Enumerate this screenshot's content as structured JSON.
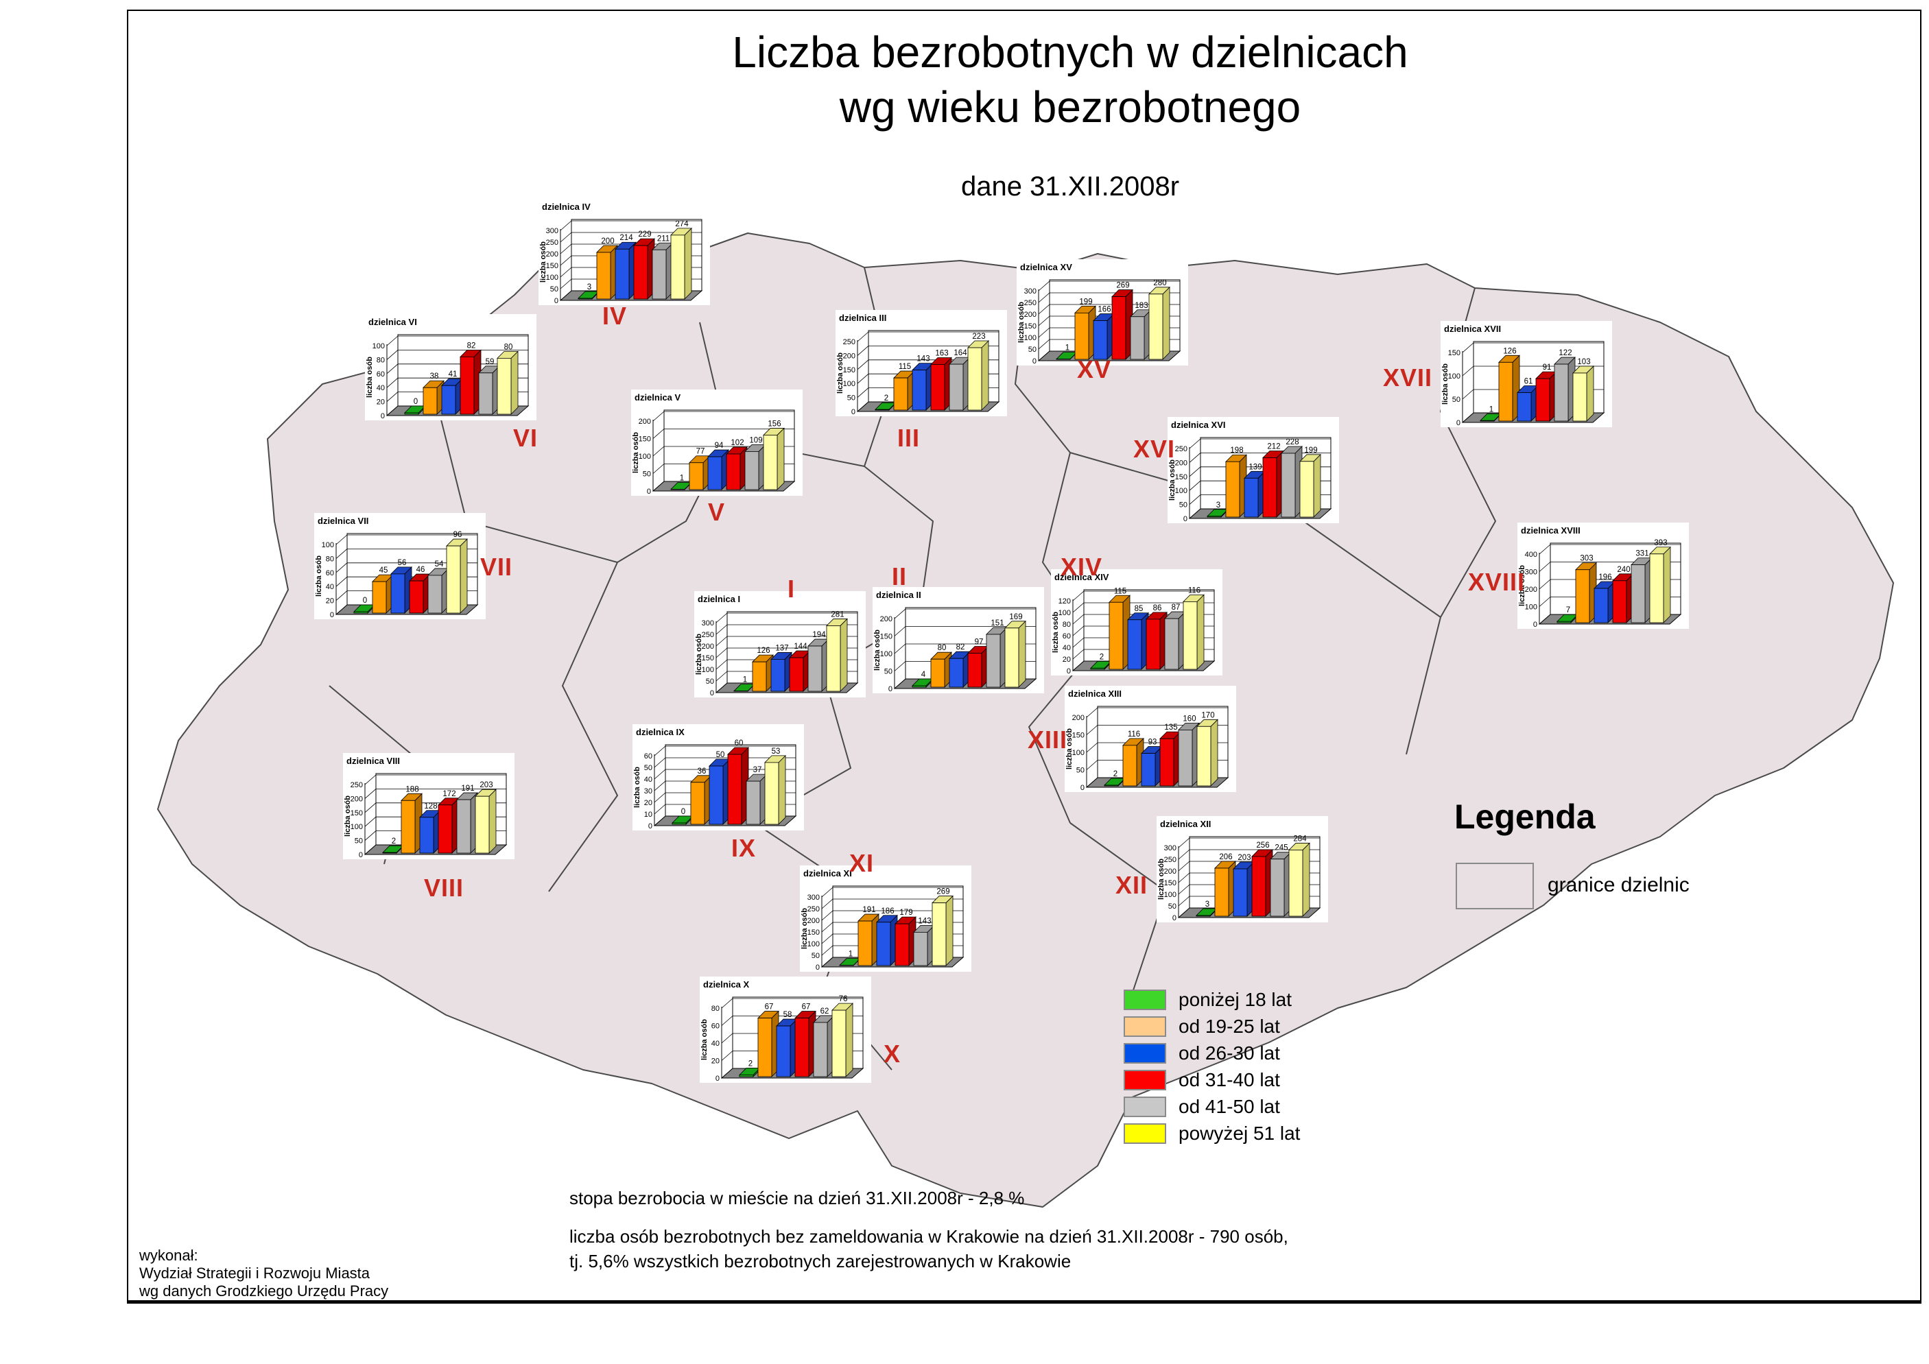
{
  "title_line1": "Liczba bezrobotnych w dzielnicach",
  "title_line2": "wg wieku bezrobotnego",
  "subtitle": "dane 31.XII.2008r",
  "legend": {
    "title": "Legenda",
    "boundary_label": "granice dzielnic",
    "boundary_fill": "#e9e0e3"
  },
  "age_groups": [
    {
      "label": "poniżej 18 lat",
      "swatch": "#3fd62a",
      "bar": "#1db91d",
      "bar_top": "#17a517",
      "bar_side": "#128812"
    },
    {
      "label": "od 19-25 lat",
      "swatch": "#ffcc8c",
      "bar": "#ff9c00",
      "bar_top": "#e08a00",
      "bar_side": "#b06c00"
    },
    {
      "label": "od 26-30 lat",
      "swatch": "#0051e8",
      "bar": "#2356e8",
      "bar_top": "#1c45c4",
      "bar_side": "#16359e"
    },
    {
      "label": "od 31-40 lat",
      "swatch": "#ff0000",
      "bar": "#f00000",
      "bar_top": "#c80000",
      "bar_side": "#a00000"
    },
    {
      "label": "od 41-50 lat",
      "swatch": "#c8c8c8",
      "bar": "#b5b5b5",
      "bar_top": "#9d9d9d",
      "bar_side": "#838383"
    },
    {
      "label": "powyżej 51 lat",
      "swatch": "#ffff00",
      "bar": "#ffffa8",
      "bar_top": "#e8e88a",
      "bar_side": "#c9c96a"
    }
  ],
  "chart_data": [
    {
      "type": "bar",
      "district": "I",
      "title": "dzielnica I",
      "ylabel": "liczba osób",
      "ylim": [
        0,
        300
      ],
      "ystep": 50,
      "values": [
        1,
        126,
        137,
        144,
        194,
        281
      ]
    },
    {
      "type": "bar",
      "district": "II",
      "title": "dzielnica II",
      "ylabel": "liczba osób",
      "ylim": [
        0,
        200
      ],
      "ystep": 50,
      "values": [
        4,
        80,
        82,
        97,
        151,
        169
      ]
    },
    {
      "type": "bar",
      "district": "III",
      "title": "dzielnica III",
      "ylabel": "liczba osób",
      "ylim": [
        0,
        250
      ],
      "ystep": 50,
      "values": [
        2,
        115,
        143,
        163,
        164,
        223
      ]
    },
    {
      "type": "bar",
      "district": "IV",
      "title": "dzielnica IV",
      "ylabel": "liczba osób",
      "ylim": [
        0,
        300
      ],
      "ystep": 50,
      "values": [
        3,
        200,
        214,
        229,
        211,
        274
      ]
    },
    {
      "type": "bar",
      "district": "V",
      "title": "dzielnica V",
      "ylabel": "liczba osób",
      "ylim": [
        0,
        200
      ],
      "ystep": 50,
      "values": [
        1,
        77,
        94,
        102,
        109,
        156
      ]
    },
    {
      "type": "bar",
      "district": "VI",
      "title": "dzielnica VI",
      "ylabel": "liczba osób",
      "ylim": [
        0,
        100
      ],
      "ystep": 20,
      "values": [
        0,
        38,
        41,
        82,
        59,
        80
      ]
    },
    {
      "type": "bar",
      "district": "VII",
      "title": "dzielnica VII",
      "ylabel": "liczba osób",
      "ylim": [
        0,
        100
      ],
      "ystep": 20,
      "values": [
        0,
        45,
        56,
        46,
        54,
        96
      ]
    },
    {
      "type": "bar",
      "district": "VIII",
      "title": "dzielnica VIII",
      "ylabel": "liczba osób",
      "ylim": [
        0,
        250
      ],
      "ystep": 50,
      "values": [
        2,
        188,
        128,
        172,
        191,
        203
      ]
    },
    {
      "type": "bar",
      "district": "IX",
      "title": "dzielnica IX",
      "ylabel": "liczba osób",
      "ylim": [
        0,
        60
      ],
      "ystep": 10,
      "values": [
        0,
        36,
        50,
        60,
        37,
        53
      ]
    },
    {
      "type": "bar",
      "district": "X",
      "title": "dzielnica X",
      "ylabel": "liczba osób",
      "ylim": [
        0,
        80
      ],
      "ystep": 20,
      "values": [
        2,
        67,
        58,
        67,
        62,
        76
      ]
    },
    {
      "type": "bar",
      "district": "XI",
      "title": "dzielnica XI",
      "ylabel": "liczba osób",
      "ylim": [
        0,
        300
      ],
      "ystep": 50,
      "values": [
        1,
        191,
        186,
        179,
        143,
        269
      ]
    },
    {
      "type": "bar",
      "district": "XII",
      "title": "dzielnica XII",
      "ylabel": "liczba osób",
      "ylim": [
        0,
        300
      ],
      "ystep": 50,
      "values": [
        3,
        206,
        203,
        256,
        245,
        284
      ]
    },
    {
      "type": "bar",
      "district": "XIII",
      "title": "dzielnica XIII",
      "ylabel": "liczba osób",
      "ylim": [
        0,
        200
      ],
      "ystep": 50,
      "values": [
        2,
        116,
        93,
        135,
        160,
        170
      ]
    },
    {
      "type": "bar",
      "district": "XIV",
      "title": "dzielnica XIV",
      "ylabel": "liczba osób",
      "ylim": [
        0,
        120
      ],
      "ystep": 20,
      "values": [
        2,
        115,
        85,
        86,
        87,
        116
      ]
    },
    {
      "type": "bar",
      "district": "XV",
      "title": "dzielnica XV",
      "ylabel": "liczba osób",
      "ylim": [
        0,
        300
      ],
      "ystep": 50,
      "values": [
        1,
        199,
        166,
        269,
        183,
        280
      ]
    },
    {
      "type": "bar",
      "district": "XVI",
      "title": "dzielnica XVI",
      "ylabel": "liczba osób",
      "ylim": [
        0,
        250
      ],
      "ystep": 50,
      "values": [
        3,
        198,
        139,
        212,
        228,
        199
      ]
    },
    {
      "type": "bar",
      "district": "XVII",
      "title": "dzielnica XVII",
      "ylabel": "liczba osób",
      "ylim": [
        0,
        150
      ],
      "ystep": 50,
      "values": [
        1,
        126,
        61,
        91,
        122,
        103
      ]
    },
    {
      "type": "bar",
      "district": "XVIII",
      "title": "dzielnica XVIII",
      "ylabel": "liczba osób",
      "ylim": [
        0,
        400
      ],
      "ystep": 100,
      "values": [
        7,
        303,
        196,
        240,
        331,
        393
      ]
    }
  ],
  "notes": {
    "note1": "stopa bezrobocia w mieście na dzień 31.XII.2008r  - 2,8 %",
    "note2": "liczba osób bezrobotnych bez zameldowania w  Krakowie na dzień 31.XII.2008r  - 790 osób,",
    "note3": "tj. 5,6% wszystkich bezrobotnych zarejestrowanych w Krakowie"
  },
  "credits": {
    "line1": "wykonał:",
    "line2": "Wydział Strategii i Rozwoju Miasta",
    "line3": "wg danych Grodzkiego Urzędu Pracy"
  }
}
